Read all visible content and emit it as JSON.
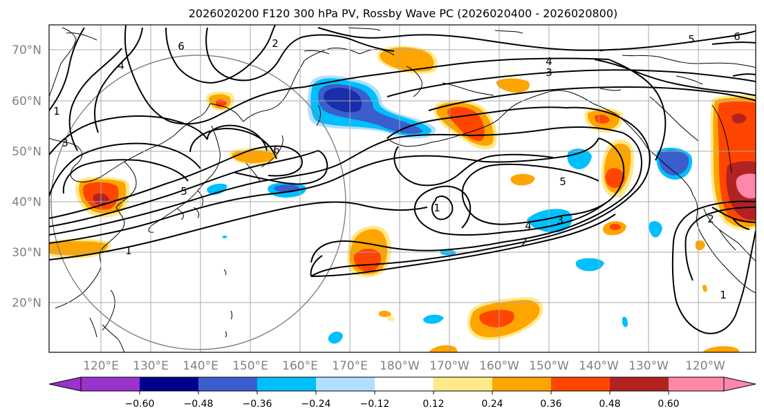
{
  "title": "2026020200 F120 300 hPa PV, Rossby Wave PC (2026020400 - 2026020800)",
  "lat_labels": [
    "70°N",
    "60°N",
    "50°N",
    "40°N",
    "30°N",
    "20°N"
  ],
  "lon_labels": [
    "120°E",
    "130°E",
    "140°E",
    "150°E",
    "160°E",
    "170°E",
    "180°W",
    "170°W",
    "160°W",
    "150°W",
    "140°W",
    "130°W",
    "120°W"
  ],
  "contour_labels": [
    {
      "text": "6",
      "lon": 138,
      "lat": 70
    },
    {
      "text": "2",
      "lon": 163,
      "lat": 71
    },
    {
      "text": "4",
      "lon": 127,
      "lat": 67
    },
    {
      "text": "1",
      "lon": 111,
      "lat": 57
    },
    {
      "text": "3",
      "lon": 112,
      "lat": 51
    },
    {
      "text": "6",
      "lon": 165,
      "lat": 52
    },
    {
      "text": "5",
      "lon": 143,
      "lat": 42
    },
    {
      "text": "1",
      "lon": 136,
      "lat": 31
    },
    {
      "text": "4",
      "lon": -146,
      "lat": 66.5
    },
    {
      "text": "3",
      "lon": -146,
      "lat": 64
    },
    {
      "text": "5",
      "lon": -125.5,
      "lat": 73.5
    },
    {
      "text": "6",
      "lon": -122,
      "lat": 74
    },
    {
      "text": "1",
      "lon": -173,
      "lat": 38
    },
    {
      "text": "5",
      "lon": -145,
      "lat": 42
    },
    {
      "text": "4",
      "lon": -156,
      "lat": 35
    },
    {
      "text": "3",
      "lon": -152,
      "lat": 34
    },
    {
      "text": "2",
      "lon": -153,
      "lat": 31
    },
    {
      "text": "2",
      "lon": -122,
      "lat": 36.5
    },
    {
      "text": "1",
      "lon": -123,
      "lat": 20
    }
  ],
  "colorbar": {
    "ticks": [
      "−0.60",
      "−0.48",
      "−0.36",
      "−0.24",
      "−0.12",
      "0.12",
      "0.24",
      "0.36",
      "0.48",
      "0.60"
    ],
    "colors": [
      "#9933cc",
      "#00008b",
      "#3a5fcd",
      "#00bfff",
      "#b0e0ff",
      "#ffffff",
      "#ffe98a",
      "#ffa500",
      "#ff4500",
      "#b22222",
      "#ff88aa"
    ]
  },
  "shading_colors": {
    "light_blue": "#b0e0ff",
    "blue": "#00bfff",
    "medium_blue": "#3a5fcd",
    "dark_blue": "#1a2dab",
    "yellow": "#ffe98a",
    "orange": "#ffa500",
    "red_orange": "#ff4500",
    "dark_red": "#b22222",
    "pink": "#ff88aa"
  }
}
